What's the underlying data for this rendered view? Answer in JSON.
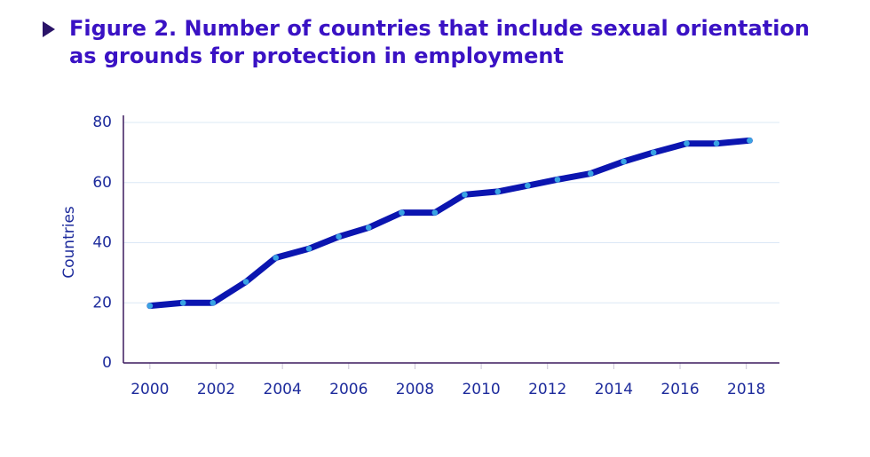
{
  "chart_data": {
    "type": "line",
    "title": "Figure 2. Number of countries that include sexual orientation",
    "subtitle": "as grounds for protection in employment",
    "y_label": "Countries",
    "x": [
      2000,
      2001.0,
      2001.9,
      2002.9,
      2003.8,
      2004.8,
      2005.7,
      2006.6,
      2007.6,
      2008.6,
      2009.5,
      2010.5,
      2011.4,
      2012.3,
      2013.3,
      2014.3,
      2015.2,
      2016.2,
      2017.1,
      2018.1
    ],
    "series": [
      {
        "name": "Countries",
        "color": "#0b15b0",
        "marker_color": "#39a3e3",
        "values": [
          19,
          20,
          20,
          27,
          35,
          38,
          42,
          45,
          50,
          50,
          56,
          57,
          59,
          61,
          63,
          67,
          70,
          73,
          73,
          74
        ]
      }
    ],
    "xlim": [
      1999.2,
      2019
    ],
    "xticks": [
      2000,
      2002,
      2004,
      2006,
      2008,
      2010,
      2012,
      2014,
      2016,
      2018
    ],
    "ylim": [
      0,
      80
    ],
    "yticks": [
      0,
      20,
      40,
      60,
      80
    ],
    "grid": true
  }
}
